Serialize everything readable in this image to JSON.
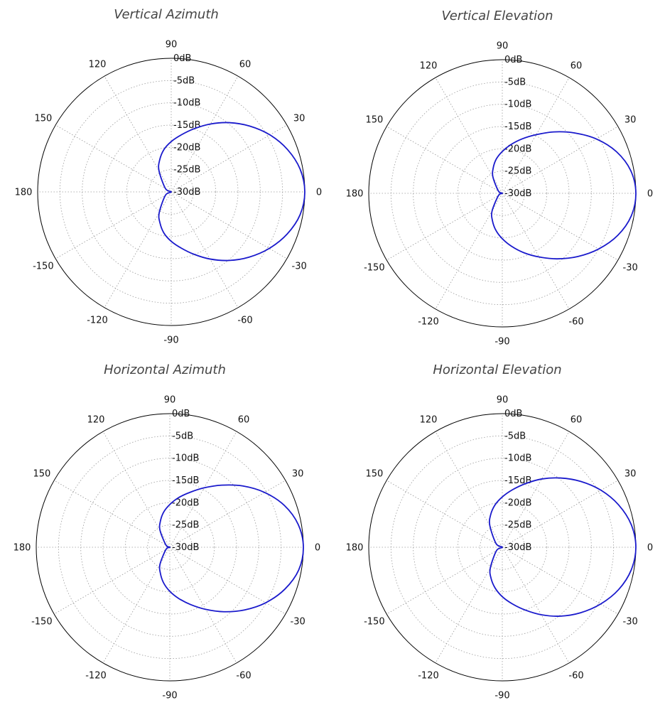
{
  "chart_data": [
    {
      "type": "polar-line",
      "title": "Vertical Azimuth",
      "angle_ticks": [
        "0",
        "30",
        "60",
        "90",
        "120",
        "150",
        "180",
        "-150",
        "-120",
        "-90",
        "-60",
        "-30"
      ],
      "radial_ticks": [
        "-30dB",
        "-25dB",
        "-20dB",
        "-15dB",
        "-10dB",
        "-5dB",
        "0dB"
      ],
      "r_range_db": [
        -30,
        0
      ],
      "grid": true,
      "line_color": "#1a1acc",
      "series": [
        {
          "theta_deg": [
            0,
            10,
            20,
            30,
            40,
            50,
            60,
            70,
            80,
            90,
            100,
            110,
            120,
            150,
            180,
            -150,
            -120,
            -110,
            -100,
            -90,
            -80,
            -70,
            -60,
            -50,
            -40,
            -30,
            -20,
            -10
          ],
          "db": [
            0,
            -0.6,
            -2.2,
            -4.4,
            -7.0,
            -9.7,
            -12.4,
            -14.9,
            -17.0,
            -18.7,
            -20.4,
            -22.4,
            -24.5,
            -28.5,
            -30.0,
            -28.5,
            -24.6,
            -22.6,
            -20.6,
            -18.9,
            -17.2,
            -15.1,
            -12.6,
            -9.9,
            -7.2,
            -4.6,
            -2.3,
            -0.6
          ]
        }
      ]
    },
    {
      "type": "polar-line",
      "title": "Vertical Elevation",
      "angle_ticks": [
        "0",
        "30",
        "60",
        "90",
        "120",
        "150",
        "180",
        "-150",
        "-120",
        "-90",
        "-60",
        "-30"
      ],
      "radial_ticks": [
        "-30dB",
        "-25dB",
        "-20dB",
        "-15dB",
        "-10dB",
        "-5dB",
        "0dB"
      ],
      "r_range_db": [
        -30,
        0
      ],
      "grid": true,
      "line_color": "#1a1acc",
      "series": [
        {
          "theta_deg": [
            0,
            10,
            20,
            30,
            40,
            50,
            60,
            70,
            80,
            90,
            100,
            110,
            120,
            150,
            180,
            -150,
            -120,
            -110,
            -100,
            -90,
            -80,
            -70,
            -60,
            -50,
            -40,
            -30,
            -20,
            -10
          ],
          "db": [
            0,
            -0.7,
            -2.7,
            -5.6,
            -8.9,
            -12.0,
            -14.8,
            -17.0,
            -18.9,
            -20.6,
            -22.2,
            -24.0,
            -25.8,
            -29.0,
            -30.0,
            -29.0,
            -25.4,
            -23.5,
            -21.6,
            -19.8,
            -17.9,
            -15.8,
            -13.5,
            -10.8,
            -7.9,
            -5.0,
            -2.4,
            -0.6
          ]
        }
      ]
    },
    {
      "type": "polar-line",
      "title": "Horizontal Azimuth",
      "angle_ticks": [
        "0",
        "30",
        "60",
        "90",
        "120",
        "150",
        "180",
        "-150",
        "-120",
        "-90",
        "-60",
        "-30"
      ],
      "radial_ticks": [
        "-30dB",
        "-25dB",
        "-20dB",
        "-15dB",
        "-10dB",
        "-5dB",
        "0dB"
      ],
      "r_range_db": [
        -30,
        0
      ],
      "grid": true,
      "line_color": "#1a1acc",
      "series": [
        {
          "theta_deg": [
            0,
            10,
            20,
            30,
            40,
            50,
            60,
            70,
            80,
            90,
            100,
            110,
            120,
            150,
            180,
            -150,
            -120,
            -110,
            -100,
            -90,
            -80,
            -70,
            -60,
            -50,
            -40,
            -30,
            -20,
            -10
          ],
          "db": [
            0,
            -0.7,
            -2.6,
            -5.4,
            -8.6,
            -11.8,
            -14.6,
            -16.9,
            -18.7,
            -20.4,
            -22.0,
            -23.8,
            -25.6,
            -29.0,
            -30.0,
            -29.0,
            -25.6,
            -23.8,
            -21.9,
            -20.1,
            -18.3,
            -16.3,
            -13.9,
            -11.1,
            -8.1,
            -5.1,
            -2.5,
            -0.6
          ]
        }
      ]
    },
    {
      "type": "polar-line",
      "title": "Horizontal Elevation",
      "angle_ticks": [
        "0",
        "30",
        "60",
        "90",
        "120",
        "150",
        "180",
        "-150",
        "-120",
        "-90",
        "-60",
        "-30"
      ],
      "radial_ticks": [
        "-30dB",
        "-25dB",
        "-20dB",
        "-15dB",
        "-10dB",
        "-5dB",
        "0dB"
      ],
      "r_range_db": [
        -30,
        0
      ],
      "grid": true,
      "line_color": "#1a1acc",
      "series": [
        {
          "theta_deg": [
            0,
            10,
            20,
            30,
            40,
            50,
            60,
            70,
            80,
            90,
            100,
            110,
            120,
            150,
            180,
            -150,
            -120,
            -110,
            -100,
            -90,
            -80,
            -70,
            -60,
            -50,
            -40,
            -30,
            -20,
            -10
          ],
          "db": [
            0,
            -0.6,
            -2.2,
            -4.4,
            -7.0,
            -9.7,
            -12.3,
            -14.8,
            -16.9,
            -18.7,
            -20.4,
            -22.3,
            -24.4,
            -28.4,
            -30.0,
            -28.5,
            -24.6,
            -22.6,
            -20.7,
            -18.9,
            -17.1,
            -15.0,
            -12.5,
            -9.8,
            -7.1,
            -4.5,
            -2.2,
            -0.6
          ]
        }
      ]
    }
  ]
}
